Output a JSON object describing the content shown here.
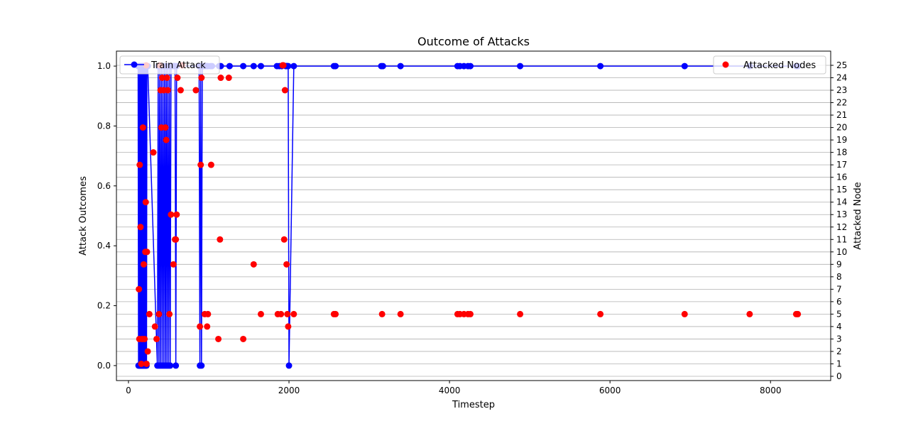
{
  "chart_data": {
    "type": "line",
    "title": "Outcome of Attacks",
    "xlabel": "Timestep",
    "ylabel_left": "Attack Outcomes",
    "ylabel_right": "Attacked Node",
    "xlim": [
      -150,
      8750
    ],
    "ylim_left": [
      -0.05,
      1.05
    ],
    "ylim_right": [
      0,
      25
    ],
    "x_ticks": [
      0,
      2000,
      4000,
      6000,
      8000
    ],
    "y_ticks_left": [
      0.0,
      0.2,
      0.4,
      0.6,
      0.8,
      1.0
    ],
    "y_ticks_right": [
      0,
      1,
      2,
      3,
      4,
      5,
      6,
      7,
      8,
      9,
      10,
      11,
      12,
      13,
      14,
      15,
      16,
      17,
      18,
      19,
      20,
      21,
      22,
      23,
      24,
      25
    ],
    "grid": "horizontal, right axis",
    "colors": {
      "line": "#0000ff",
      "points": "#ff0000"
    },
    "legend_left": {
      "placement": "top-left",
      "label": "Train Attack"
    },
    "legend_right": {
      "placement": "top-right",
      "label": "Attacked Nodes"
    },
    "series": [
      {
        "name": "Train Attack",
        "axis": "left",
        "x": [
          120,
          125,
          130,
          135,
          140,
          145,
          150,
          155,
          160,
          165,
          170,
          175,
          180,
          185,
          190,
          195,
          200,
          205,
          210,
          215,
          220,
          225,
          230,
          240,
          360,
          370,
          380,
          390,
          400,
          410,
          420,
          430,
          440,
          450,
          460,
          470,
          480,
          490,
          500,
          510,
          520,
          530,
          540,
          560,
          570,
          580,
          590,
          600,
          880,
          890,
          900,
          910,
          920,
          930,
          940,
          950,
          960,
          970,
          980,
          990,
          1020,
          1040,
          1130,
          1150,
          1260,
          1430,
          1560,
          1650,
          1850,
          1880,
          1910,
          1960,
          1970,
          1980,
          1990,
          2000,
          2060,
          2560,
          2580,
          3150,
          3170,
          3390,
          4100,
          4130,
          4180,
          4230,
          4260,
          4880,
          5880,
          6930,
          7740,
          8320,
          8340
        ],
        "values": [
          1,
          0,
          1,
          0,
          1,
          0,
          1,
          0,
          1,
          0,
          1,
          0,
          1,
          0,
          1,
          0,
          1,
          0,
          1,
          0,
          1,
          0,
          1,
          1,
          0,
          1,
          0,
          1,
          0,
          1,
          0,
          1,
          0,
          1,
          0,
          1,
          0,
          1,
          0,
          1,
          0,
          1,
          1,
          1,
          1,
          1,
          0,
          1,
          1,
          0,
          1,
          0,
          1,
          1,
          1,
          1,
          1,
          1,
          1,
          1,
          1,
          1,
          1,
          1,
          1,
          1,
          1,
          1,
          1,
          1,
          1,
          1,
          1,
          1,
          1,
          0,
          1,
          1,
          1,
          1,
          1,
          1,
          1,
          1,
          1,
          1,
          1,
          1,
          1,
          1,
          1,
          1,
          1
        ]
      },
      {
        "name": "Attacked Nodes",
        "axis": "right",
        "x": [
          130,
          135,
          140,
          150,
          160,
          170,
          180,
          190,
          200,
          210,
          215,
          220,
          225,
          230,
          240,
          260,
          310,
          330,
          350,
          380,
          390,
          400,
          410,
          420,
          440,
          460,
          470,
          480,
          490,
          510,
          530,
          560,
          580,
          590,
          600,
          610,
          650,
          670,
          840,
          890,
          900,
          910,
          950,
          980,
          990,
          1030,
          1120,
          1140,
          1150,
          1250,
          1430,
          1560,
          1650,
          1860,
          1900,
          1920,
          1930,
          1940,
          1950,
          1970,
          1980,
          1990,
          2060,
          2560,
          2580,
          3160,
          3390,
          4100,
          4130,
          4180,
          4230,
          4260,
          4880,
          5880,
          6930,
          7740,
          8320,
          8340
        ],
        "values": [
          7,
          3,
          17,
          12,
          1,
          3,
          20,
          9,
          3,
          10,
          14,
          25,
          1,
          10,
          2,
          5,
          18,
          4,
          3,
          5,
          25,
          23,
          20,
          24,
          23,
          20,
          19,
          24,
          23,
          5,
          13,
          9,
          11,
          11,
          13,
          24,
          23,
          25,
          23,
          4,
          17,
          24,
          5,
          4,
          5,
          17,
          3,
          11,
          24,
          24,
          3,
          9,
          5,
          5,
          5,
          25,
          25,
          11,
          23,
          9,
          5,
          4,
          5,
          5,
          5,
          5,
          5,
          5,
          5,
          5,
          5,
          5,
          5,
          5,
          5,
          5,
          5,
          5
        ]
      }
    ]
  }
}
